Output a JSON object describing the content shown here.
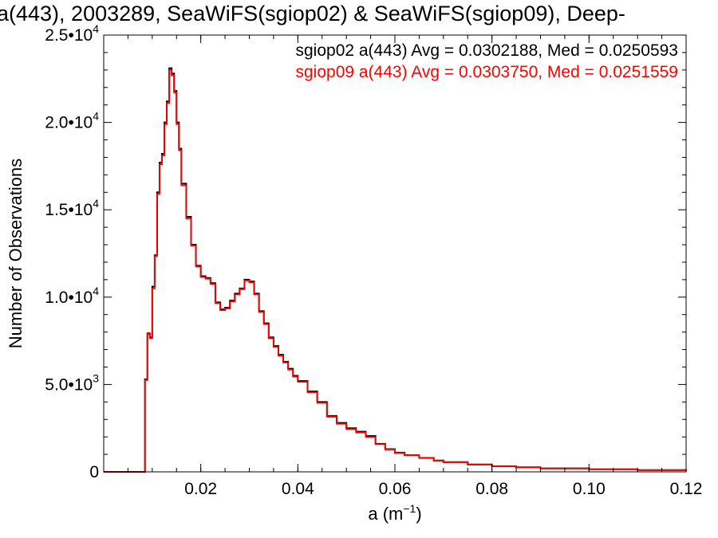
{
  "chart_data": {
    "type": "line",
    "title": "a(443), 2003289, SeaWiFS(sgiop02) & SeaWiFS(sgiop09), Deep-",
    "xlabel_base": "a (m",
    "xlabel_exp": "−1",
    "xlabel_close": ")",
    "ylabel": "Number of Observations",
    "xlim": [
      0.0,
      0.12
    ],
    "ylim": [
      0,
      25000
    ],
    "xticks": [
      {
        "value": 0.02,
        "label": "0.02"
      },
      {
        "value": 0.04,
        "label": "0.04"
      },
      {
        "value": 0.06,
        "label": "0.06"
      },
      {
        "value": 0.08,
        "label": "0.08"
      },
      {
        "value": 0.1,
        "label": "0.10"
      },
      {
        "value": 0.12,
        "label": "0.12"
      }
    ],
    "yticks": [
      {
        "value": 0,
        "mant": "0",
        "exp": ""
      },
      {
        "value": 5000,
        "mant": "5.0•10",
        "exp": "3"
      },
      {
        "value": 10000,
        "mant": "1.0•10",
        "exp": "4"
      },
      {
        "value": 15000,
        "mant": "1.5•10",
        "exp": "4"
      },
      {
        "value": 20000,
        "mant": "2.0•10",
        "exp": "4"
      },
      {
        "value": 25000,
        "mant": "2.5•10",
        "exp": "4"
      }
    ],
    "annotations": [
      {
        "text": "sgiop02 a(443) Avg = 0.0302188, Med = 0.0250593",
        "color": "#000000"
      },
      {
        "text": "sgiop09 a(443) Avg = 0.0303750, Med = 0.0251559",
        "color": "#ff0000"
      }
    ],
    "series": [
      {
        "color": "#000000",
        "x": [
          0.0,
          0.005,
          0.006,
          0.008,
          0.0085,
          0.009,
          0.0095,
          0.01,
          0.0105,
          0.011,
          0.0115,
          0.012,
          0.0125,
          0.013,
          0.0135,
          0.014,
          0.0145,
          0.015,
          0.0155,
          0.016,
          0.017,
          0.018,
          0.019,
          0.02,
          0.021,
          0.022,
          0.023,
          0.024,
          0.025,
          0.026,
          0.027,
          0.028,
          0.029,
          0.03,
          0.031,
          0.032,
          0.033,
          0.034,
          0.035,
          0.036,
          0.037,
          0.038,
          0.039,
          0.04,
          0.042,
          0.044,
          0.046,
          0.048,
          0.05,
          0.052,
          0.054,
          0.056,
          0.058,
          0.06,
          0.062,
          0.065,
          0.068,
          0.07,
          0.075,
          0.08,
          0.085,
          0.09,
          0.1,
          0.11,
          0.12
        ],
        "y": [
          0,
          0,
          0,
          0,
          5300,
          7900,
          7700,
          10600,
          12400,
          16000,
          17700,
          18200,
          20000,
          21200,
          23100,
          22800,
          21800,
          20000,
          18500,
          16500,
          14600,
          13000,
          11800,
          11200,
          11100,
          10800,
          9700,
          9300,
          9400,
          9800,
          10200,
          10500,
          11000,
          10900,
          10200,
          9200,
          8500,
          7700,
          7200,
          6700,
          6300,
          5900,
          5500,
          5200,
          4600,
          4000,
          3200,
          2800,
          2500,
          2300,
          2050,
          1600,
          1300,
          1100,
          950,
          800,
          650,
          560,
          420,
          320,
          260,
          200,
          150,
          100,
          60
        ]
      },
      {
        "color": "#ff0000",
        "x": [
          0.0,
          0.005,
          0.006,
          0.008,
          0.0085,
          0.009,
          0.0095,
          0.01,
          0.0105,
          0.011,
          0.0115,
          0.012,
          0.0125,
          0.013,
          0.0135,
          0.014,
          0.0145,
          0.015,
          0.0155,
          0.016,
          0.017,
          0.018,
          0.019,
          0.02,
          0.021,
          0.022,
          0.023,
          0.024,
          0.025,
          0.026,
          0.027,
          0.028,
          0.029,
          0.03,
          0.031,
          0.032,
          0.033,
          0.034,
          0.035,
          0.036,
          0.037,
          0.038,
          0.039,
          0.04,
          0.042,
          0.044,
          0.046,
          0.048,
          0.05,
          0.052,
          0.054,
          0.056,
          0.058,
          0.06,
          0.062,
          0.065,
          0.068,
          0.07,
          0.075,
          0.08,
          0.085,
          0.09,
          0.1,
          0.11,
          0.12
        ],
        "y": [
          0,
          0,
          0,
          0,
          5250,
          7950,
          7650,
          10500,
          12350,
          15900,
          17600,
          18100,
          19900,
          21100,
          23000,
          22700,
          21700,
          19900,
          18400,
          16400,
          14500,
          12950,
          11750,
          11150,
          11050,
          10750,
          9650,
          9250,
          9350,
          9750,
          10150,
          10450,
          10950,
          10850,
          10150,
          9150,
          8450,
          7650,
          7150,
          6650,
          6250,
          5850,
          5450,
          5150,
          4550,
          3950,
          3150,
          2750,
          2450,
          2250,
          2000,
          1580,
          1280,
          1080,
          940,
          790,
          640,
          550,
          410,
          310,
          250,
          190,
          145,
          95,
          55
        ]
      }
    ]
  }
}
